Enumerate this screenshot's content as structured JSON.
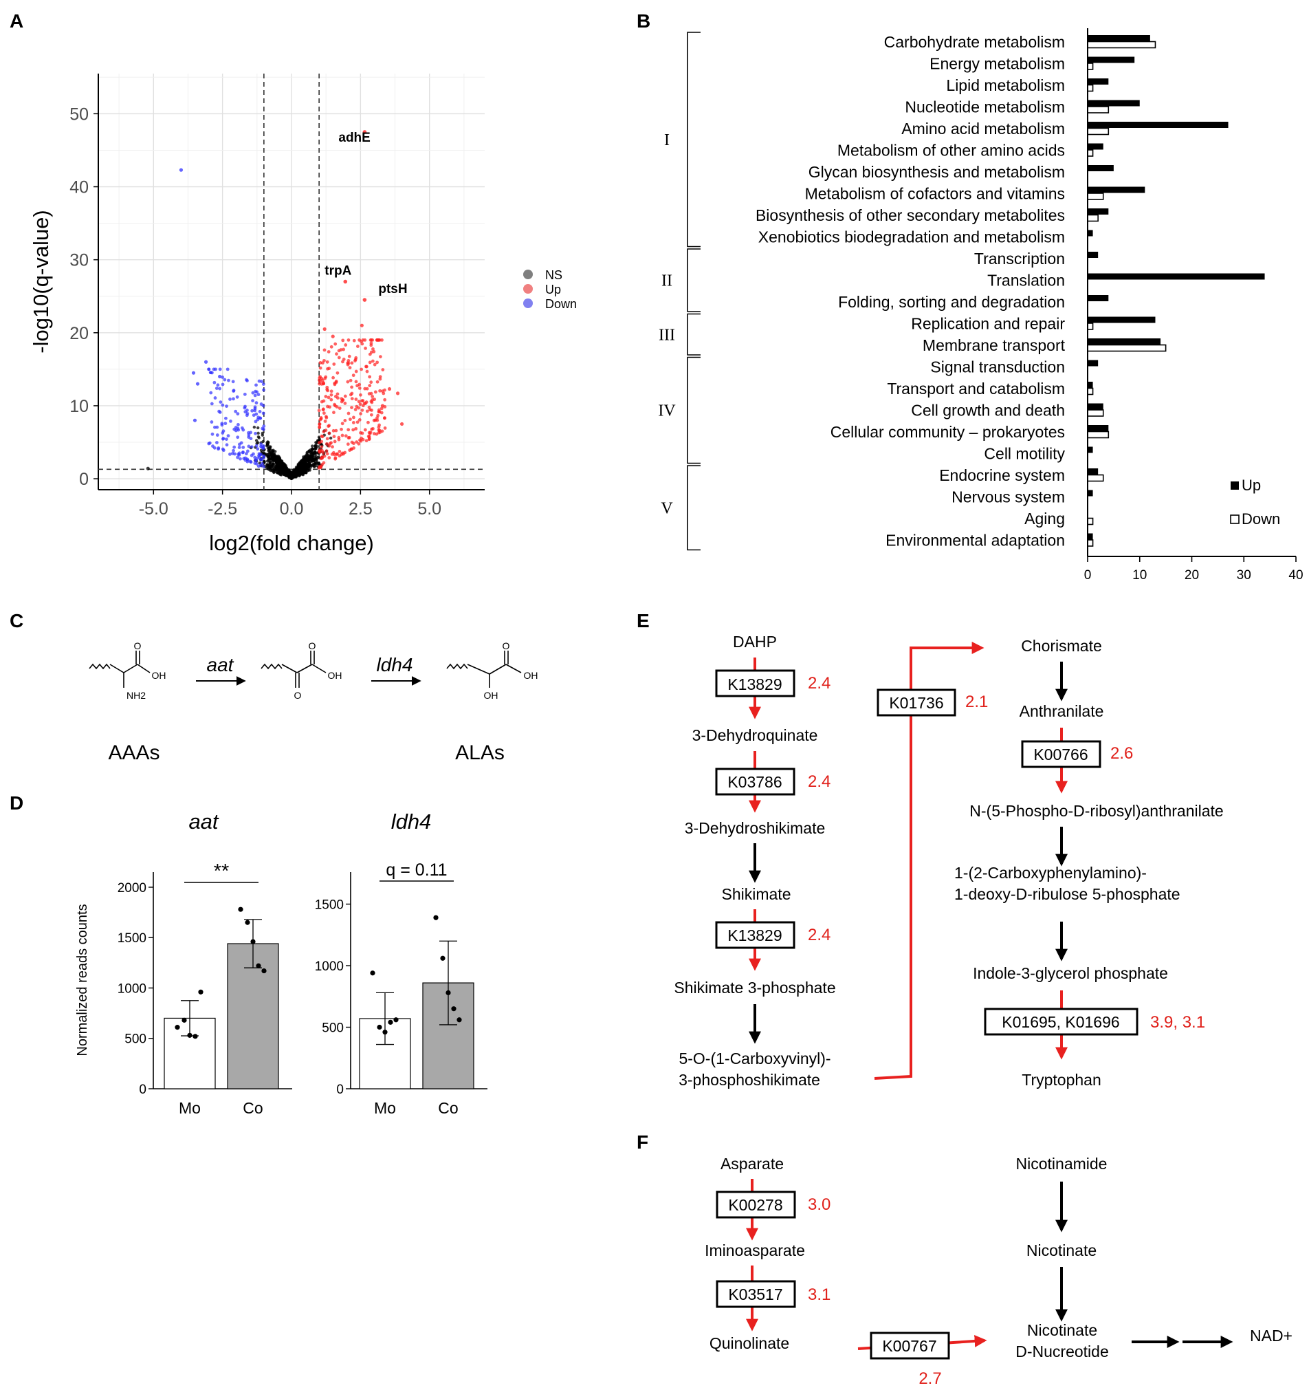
{
  "panel_letters": {
    "a": "A",
    "b": "B",
    "c": "C",
    "d": "D",
    "e": "E",
    "f": "F"
  },
  "chart_data": [
    {
      "id": "volcano",
      "type": "scatter",
      "title": "",
      "xlabel": "log2(fold change)",
      "ylabel": "-log10(q-value)",
      "xlim": [
        -7.0,
        7.0
      ],
      "ylim": [
        -1.5,
        55.5
      ],
      "xticks": [
        -5.0,
        -2.5,
        0.0,
        2.5,
        5.0
      ],
      "xtick_labels": [
        "-5.0",
        "-2.5",
        "0.0",
        "2.5",
        "5.0"
      ],
      "yticks": [
        0,
        10,
        20,
        30,
        40,
        50
      ],
      "ytick_labels": [
        "0",
        "10",
        "20",
        "30",
        "40",
        "50"
      ],
      "thresholds": {
        "x": [
          -1,
          1
        ],
        "y": 1.3
      },
      "legend": [
        {
          "name": "NS",
          "color": "#7f7f7f"
        },
        {
          "name": "Up",
          "color": "#f08080"
        },
        {
          "name": "Down",
          "color": "#8080f0"
        }
      ],
      "colors": {
        "NS": "#000000",
        "Up": "#ff2020",
        "Down": "#3030ff"
      },
      "labeled_points": [
        {
          "label": "adhE",
          "x": 2.65,
          "y": 47.5,
          "group": "Up"
        },
        {
          "label": "trpA",
          "x": 1.95,
          "y": 27.0,
          "group": "Up"
        },
        {
          "label": "ptsH",
          "x": 2.65,
          "y": 24.5,
          "group": "Up"
        }
      ],
      "outlier_points": [
        {
          "x": -4.0,
          "y": 42.3,
          "group": "Down"
        },
        {
          "x": -3.1,
          "y": 16.0,
          "group": "Down"
        },
        {
          "x": -3.4,
          "y": 13.0,
          "group": "Down"
        },
        {
          "x": -3.55,
          "y": 14.5,
          "group": "Down"
        },
        {
          "x": -3.5,
          "y": 8.0,
          "group": "Down"
        },
        {
          "x": -2.6,
          "y": 14.0,
          "group": "Down"
        },
        {
          "x": 1.2,
          "y": 20.5,
          "group": "Up"
        },
        {
          "x": 1.5,
          "y": 19.5,
          "group": "Up"
        },
        {
          "x": 2.55,
          "y": 21.0,
          "group": "Up"
        },
        {
          "x": 3.55,
          "y": 12.3,
          "group": "Up"
        },
        {
          "x": 3.85,
          "y": 11.7,
          "group": "Up"
        },
        {
          "x": 3.3,
          "y": 10.0,
          "group": "Up"
        },
        {
          "x": 3.0,
          "y": 8.0,
          "group": "Up"
        },
        {
          "x": 4.0,
          "y": 7.5,
          "group": "Up"
        },
        {
          "x": -0.3,
          "y": 1.8,
          "group": "NS"
        },
        {
          "x": -5.2,
          "y": 1.4,
          "group": "NS"
        }
      ]
    },
    {
      "id": "kegg",
      "type": "bar",
      "orientation": "horizontal",
      "xlim": [
        0,
        40
      ],
      "xticks": [
        0,
        10,
        20,
        30,
        40
      ],
      "xtick_labels": [
        "0",
        "10",
        "20",
        "30",
        "40"
      ],
      "legend": [
        "Up",
        "Down"
      ],
      "categories": [
        "Carbohydrate metabolism",
        "Energy metabolism",
        "Lipid metabolism",
        "Nucleotide metabolism",
        "Amino acid metabolism",
        "Metabolism of other amino acids",
        "Glycan biosynthesis and metabolism",
        "Metabolism of cofactors and vitamins",
        "Biosynthesis of other secondary metabolites",
        "Xenobiotics biodegradation and metabolism",
        "Transcription",
        "Translation",
        "Folding, sorting and degradation",
        "Replication and repair",
        "Membrane transport",
        "Signal transduction",
        "Transport and catabolism",
        "Cell growth and death",
        "Cellular community – prokaryotes",
        "Cell motility",
        "Endocrine system",
        "Nervous system",
        "Aging",
        "Environmental adaptation"
      ],
      "series": [
        {
          "name": "Up",
          "values": [
            12,
            9,
            4,
            10,
            27,
            3,
            5,
            11,
            4,
            1,
            2,
            34,
            4,
            13,
            14,
            2,
            1,
            3,
            4,
            1,
            2,
            1,
            0,
            1
          ]
        },
        {
          "name": "Down",
          "values": [
            13,
            1,
            1,
            4,
            4,
            1,
            0,
            3,
            2,
            0,
            0,
            0,
            0,
            1,
            15,
            0,
            1,
            3,
            4,
            0,
            3,
            0,
            1,
            1
          ]
        }
      ],
      "groups": [
        {
          "label": "I",
          "first": 0,
          "last": 9
        },
        {
          "label": "II",
          "first": 10,
          "last": 12
        },
        {
          "label": "III",
          "first": 13,
          "last": 14
        },
        {
          "label": "IV",
          "first": 15,
          "last": 19
        },
        {
          "label": "V",
          "first": 20,
          "last": 23
        }
      ]
    },
    {
      "id": "aat",
      "type": "bar",
      "title": "aat",
      "ylabel": "Normalized reads counts",
      "categories": [
        "Mo",
        "Co"
      ],
      "values": [
        700,
        1440
      ],
      "errors": [
        175,
        240
      ],
      "points": [
        [
          610,
          680,
          530,
          520,
          960
        ],
        [
          1780,
          1650,
          1460,
          1220,
          1170
        ]
      ],
      "ylim": [
        0,
        2150
      ],
      "yticks": [
        0,
        500,
        1000,
        1500,
        2000
      ],
      "ytick_labels": [
        "0",
        "500",
        "1000",
        "1500",
        "2000"
      ],
      "annotation": "**"
    },
    {
      "id": "ldh4",
      "type": "bar",
      "title": "ldh4",
      "ylabel": "",
      "categories": [
        "Mo",
        "Co"
      ],
      "values": [
        570,
        860
      ],
      "errors": [
        210,
        340
      ],
      "points": [
        [
          940,
          500,
          460,
          540,
          560
        ],
        [
          1390,
          1060,
          780,
          650,
          560
        ]
      ],
      "ylim": [
        0,
        1760
      ],
      "yticks": [
        0,
        500,
        1000,
        1500
      ],
      "ytick_labels": [
        "0",
        "500",
        "1000",
        "1500"
      ],
      "annotation": "q = 0.11"
    }
  ],
  "panel_c": {
    "enzyme1": "aat",
    "enzyme2": "ldh4",
    "left_label": "AAAs",
    "right_label": "ALAs",
    "mol1": {
      "o_top": "O",
      "oh": "OH",
      "nh2": "NH2"
    },
    "mol2": {
      "o_top": "O",
      "oh": "OH",
      "o_bottom": "O"
    },
    "mol3": {
      "o_top": "O",
      "oh": "OH",
      "oh_bottom": "OH"
    }
  },
  "panel_e": {
    "left_compounds": [
      "DAHP",
      "3-Dehydroquinate",
      "3-Dehydroshikimate",
      "Shikimate",
      "Shikimate 3-phosphate",
      "5-O-(1-Carboxyvinyl)-",
      "3-phosphoshikimate"
    ],
    "left_enzymes": [
      {
        "id": "K13829",
        "fc": "2.4"
      },
      {
        "id": "K03786",
        "fc": "2.4"
      },
      {
        "id": "K13829",
        "fc": "2.4"
      }
    ],
    "middle_enzyme": {
      "id": "K01736",
      "fc": "2.1"
    },
    "right_compounds": [
      "Chorismate",
      "Anthranilate",
      "N-(5-Phospho-D-ribosyl)anthranilate",
      "1-(2-Carboxyphenylamino)-",
      "1-deoxy-D-ribulose 5-phosphate",
      "Indole-3-glycerol phosphate",
      "Tryptophan"
    ],
    "right_enzymes": [
      {
        "id": "K00766",
        "fc": "2.6"
      },
      {
        "id": "K01695, K01696",
        "fc": "3.9, 3.1"
      }
    ]
  },
  "panel_f": {
    "left_compounds": [
      "Asparate",
      "Iminoasparate",
      "Quinolinate"
    ],
    "left_enzymes": [
      {
        "id": "K00278",
        "fc": "3.0"
      },
      {
        "id": "K03517",
        "fc": "3.1"
      }
    ],
    "middle_enzyme": {
      "id": "K00767",
      "fc": "2.7"
    },
    "right_compounds": [
      "Nicotinamide",
      "Nicotinate",
      "Nicotinate",
      "D-Nucreotide",
      "NAD+"
    ]
  },
  "colors": {
    "up_red": "#e8211f",
    "fc_red": "#e0201a",
    "axis": "#000000",
    "grid": "#e8e8e8",
    "bar_grey": "#a8a8a8"
  }
}
